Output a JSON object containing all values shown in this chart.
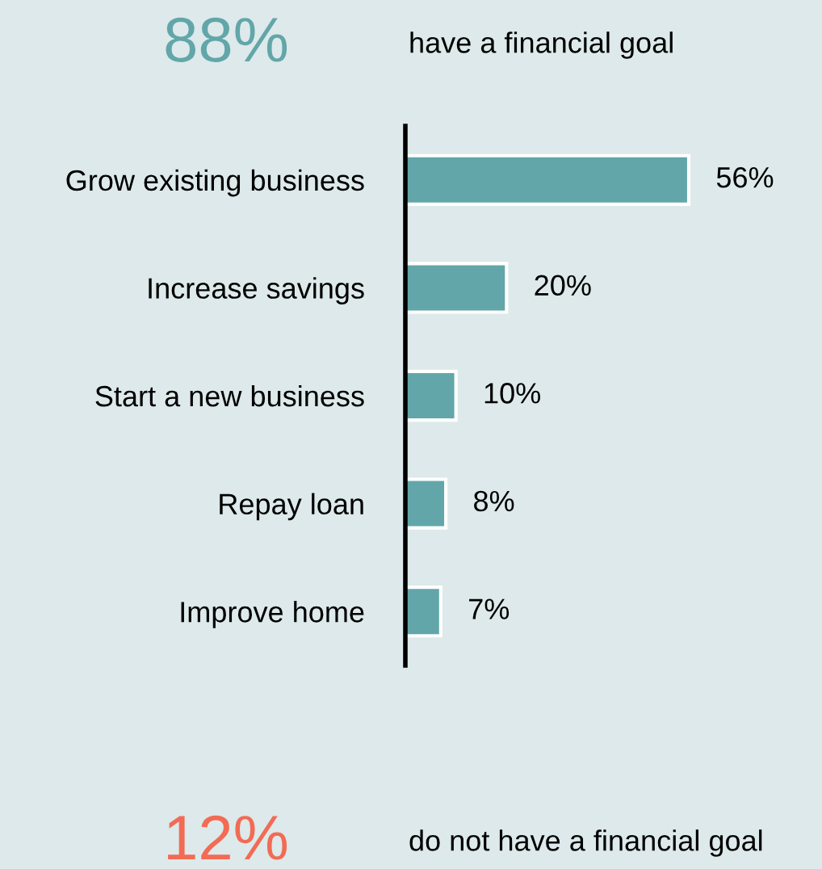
{
  "chart_data": {
    "type": "bar",
    "orientation": "horizontal",
    "categories": [
      "Grow existing business",
      "Increase savings",
      "Start a new business",
      "Repay loan",
      "Improve home"
    ],
    "values": [
      56,
      20,
      10,
      8,
      7
    ],
    "value_labels": [
      "56%",
      "20%",
      "10%",
      "8%",
      "7%"
    ],
    "tick_labels": "y",
    "color": "#62a6a9",
    "annotations": [
      "88%",
      "have a financial goal",
      "12%",
      "do not have a financial goal"
    ]
  }
}
